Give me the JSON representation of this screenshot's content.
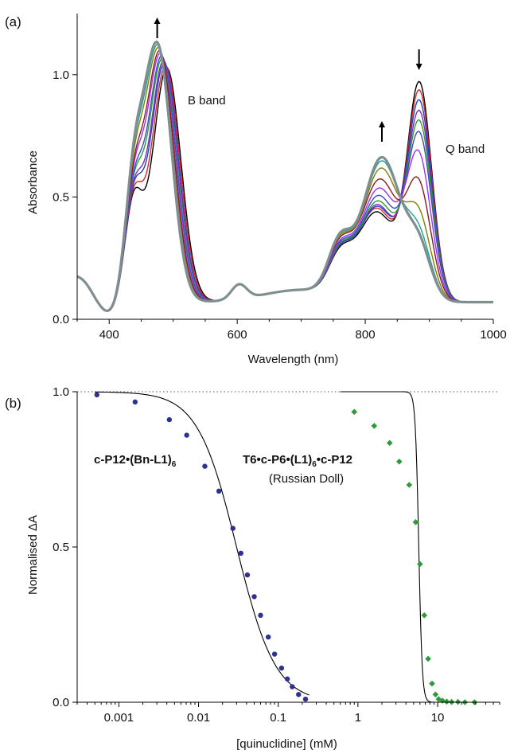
{
  "chart_data": [
    {
      "panel": "(a)",
      "type": "line",
      "xlabel": "Wavelength (nm)",
      "ylabel": "Absorbance",
      "xlim": [
        350,
        1000
      ],
      "ylim": [
        0,
        1.25
      ],
      "x_ticks": [
        400,
        600,
        800,
        1000
      ],
      "y_ticks": [
        0.0,
        0.5,
        1.0
      ],
      "x_tick_labels": [
        "400",
        "600",
        "800",
        "1000"
      ],
      "y_tick_labels": [
        "0.0",
        "0.5",
        "1.0"
      ],
      "grid": false,
      "legend": "none",
      "annotations": [
        {
          "text": "B band",
          "x": 530,
          "y": 0.92
        },
        {
          "text": "Q band",
          "x": 920,
          "y": 0.7
        }
      ],
      "arrows": [
        {
          "x": 475,
          "direction": "up"
        },
        {
          "x": 826,
          "direction": "up"
        },
        {
          "x": 884,
          "direction": "down"
        }
      ],
      "series": [
        {
          "color": "#000000",
          "values": {
            "b_peak": 1.03,
            "b_pos": 490,
            "shoulder": 0.4,
            "q1": 0.48,
            "q1_pos": 818,
            "q2": 0.99,
            "q2_pos": 885
          }
        },
        {
          "color": "#d62728",
          "values": {
            "b_peak": 1.04,
            "b_pos": 488,
            "shoulder": 0.41,
            "q1": 0.5,
            "q1_pos": 818,
            "q2": 0.95,
            "q2_pos": 885
          }
        },
        {
          "color": "#1f3fbf",
          "values": {
            "b_peak": 1.05,
            "b_pos": 486,
            "shoulder": 0.42,
            "q1": 0.51,
            "q1_pos": 819,
            "q2": 0.9,
            "q2_pos": 885
          }
        },
        {
          "color": "#7b2fbf",
          "values": {
            "b_peak": 1.06,
            "b_pos": 485,
            "shoulder": 0.43,
            "q1": 0.52,
            "q1_pos": 819,
            "q2": 0.85,
            "q2_pos": 885
          }
        },
        {
          "color": "#2ca02c",
          "values": {
            "b_peak": 1.07,
            "b_pos": 483,
            "shoulder": 0.44,
            "q1": 0.54,
            "q1_pos": 820,
            "q2": 0.8,
            "q2_pos": 885
          }
        },
        {
          "color": "#3b4cc0",
          "values": {
            "b_peak": 1.08,
            "b_pos": 482,
            "shoulder": 0.46,
            "q1": 0.57,
            "q1_pos": 821,
            "q2": 0.74,
            "q2_pos": 885
          }
        },
        {
          "color": "#9b30ff",
          "values": {
            "b_peak": 1.09,
            "b_pos": 480,
            "shoulder": 0.48,
            "q1": 0.61,
            "q1_pos": 822,
            "q2": 0.64,
            "q2_pos": 884
          }
        },
        {
          "color": "#8b1a1a",
          "values": {
            "b_peak": 1.1,
            "b_pos": 479,
            "shoulder": 0.51,
            "q1": 0.66,
            "q1_pos": 823,
            "q2": 0.5,
            "q2_pos": 884
          }
        },
        {
          "color": "#808000",
          "values": {
            "b_peak": 1.11,
            "b_pos": 477,
            "shoulder": 0.54,
            "q1": 0.72,
            "q1_pos": 825,
            "q2": 0.35,
            "q2_pos": 884
          }
        },
        {
          "color": "#1fa0a0",
          "values": {
            "b_peak": 1.12,
            "b_pos": 476,
            "shoulder": 0.56,
            "q1": 0.76,
            "q1_pos": 826,
            "q2": 0.26,
            "q2_pos": 884
          }
        },
        {
          "color": "#7f8f8f",
          "values": {
            "b_peak": 1.13,
            "b_pos": 475,
            "shoulder": 0.57,
            "q1": 0.78,
            "q1_pos": 826,
            "q2": 0.22,
            "q2_pos": 884
          }
        }
      ]
    },
    {
      "panel": "(b)",
      "type": "scatter",
      "xlabel": "[quinuclidine] (mM)",
      "ylabel": "Normalised ΔA",
      "xscale": "log",
      "xlim": [
        0.0003,
        60
      ],
      "ylim": [
        0,
        1.0
      ],
      "x_ticks": [
        0.001,
        0.01,
        0.1,
        1,
        10
      ],
      "x_tick_labels": [
        "0.001",
        "0.01",
        "0.1",
        "1",
        "10"
      ],
      "y_ticks": [
        0.0,
        0.5,
        1.0
      ],
      "y_tick_labels": [
        "0.0",
        "0.5",
        "1.0"
      ],
      "reference_line": {
        "y": 1.0,
        "style": "dotted"
      },
      "grid": false,
      "legend": "none",
      "series": [
        {
          "name": "c-P12•(Bn-L1)6",
          "marker": "circle",
          "color": "#2e3192",
          "x": [
            0.00053,
            0.0016,
            0.0043,
            0.0071,
            0.012,
            0.018,
            0.027,
            0.034,
            0.041,
            0.05,
            0.06,
            0.075,
            0.09,
            0.11,
            0.13,
            0.15,
            0.18,
            0.22
          ],
          "values": [
            0.99,
            0.967,
            0.91,
            0.86,
            0.76,
            0.68,
            0.56,
            0.48,
            0.41,
            0.34,
            0.28,
            0.21,
            0.155,
            0.11,
            0.075,
            0.05,
            0.025,
            0.01
          ],
          "fit": {
            "model": "hill",
            "k": 0.03,
            "n": 1.78
          }
        },
        {
          "name": "T6•c-P6•(L1)6•c-P12 (Russian Doll)",
          "marker": "diamond",
          "color": "#2e9a3a",
          "x": [
            0.9,
            1.6,
            2.5,
            3.3,
            4.4,
            5.3,
            6.0,
            6.8,
            7.6,
            8.5,
            9.4,
            10.3,
            11.5,
            13,
            15,
            18,
            22,
            29
          ],
          "values": [
            0.935,
            0.89,
            0.835,
            0.775,
            0.7,
            0.58,
            0.445,
            0.28,
            0.14,
            0.06,
            0.025,
            0.01,
            0.005,
            0.002,
            0.001,
            0.001,
            0.0,
            0.0
          ],
          "fit": {
            "model": "hill",
            "k": 5.8,
            "n": 20
          }
        }
      ]
    }
  ],
  "labels": {
    "panel_a": "(a)",
    "panel_b": "(b)",
    "b_band": "B band",
    "q_band": "Q band",
    "series1_name_bold": "c-P12•(Bn-L1)",
    "series1_sub": "6",
    "series2_name_part1": "T6•c-P6•(L1)",
    "series2_sub": "6",
    "series2_name_part2": "•c-P12",
    "series2_note": "(Russian Doll)"
  }
}
